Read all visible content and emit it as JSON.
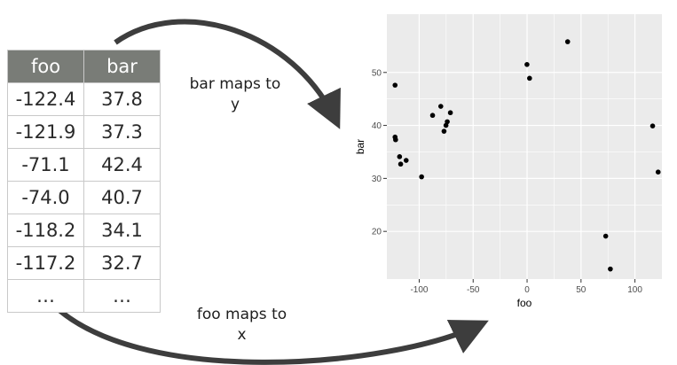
{
  "table": {
    "headers": [
      "foo",
      "bar"
    ],
    "rows": [
      [
        "-122.4",
        "37.8"
      ],
      [
        "-121.9",
        "37.3"
      ],
      [
        "-71.1",
        "42.4"
      ],
      [
        "-74.0",
        "40.7"
      ],
      [
        "-118.2",
        "34.1"
      ],
      [
        "-117.2",
        "32.7"
      ],
      [
        "…",
        "…"
      ]
    ]
  },
  "captions": {
    "bar_line1": "bar maps to",
    "bar_line2": "y",
    "foo_line1": "foo maps to",
    "foo_line2": "x"
  },
  "colors": {
    "header_fill": "#797c77",
    "panel_bg": "#ebebeb",
    "arrow": "#3d3d3d",
    "point": "#000000"
  },
  "chart_data": {
    "type": "scatter",
    "title": "",
    "xlabel": "foo",
    "ylabel": "bar",
    "xlim": [
      -130,
      125
    ],
    "ylim": [
      11,
      61
    ],
    "xticks": [
      -100,
      -50,
      0,
      50,
      100
    ],
    "yticks": [
      20,
      30,
      40,
      50
    ],
    "grid": true,
    "points": [
      {
        "x": -122.4,
        "y": 47.6
      },
      {
        "x": -122.4,
        "y": 37.8
      },
      {
        "x": -121.9,
        "y": 37.3
      },
      {
        "x": -118.2,
        "y": 34.1
      },
      {
        "x": -117.2,
        "y": 32.7
      },
      {
        "x": -112.1,
        "y": 33.4
      },
      {
        "x": -97.8,
        "y": 30.3
      },
      {
        "x": -87.6,
        "y": 41.9
      },
      {
        "x": -80.0,
        "y": 43.6
      },
      {
        "x": -77.0,
        "y": 38.9
      },
      {
        "x": -74.0,
        "y": 40.7
      },
      {
        "x": -75.2,
        "y": 40.0
      },
      {
        "x": -71.1,
        "y": 42.4
      },
      {
        "x": -0.1,
        "y": 51.5
      },
      {
        "x": 2.3,
        "y": 48.9
      },
      {
        "x": 37.6,
        "y": 55.8
      },
      {
        "x": 72.9,
        "y": 19.1
      },
      {
        "x": 77.2,
        "y": 12.9
      },
      {
        "x": 116.4,
        "y": 39.9
      },
      {
        "x": 121.5,
        "y": 31.2
      }
    ]
  }
}
